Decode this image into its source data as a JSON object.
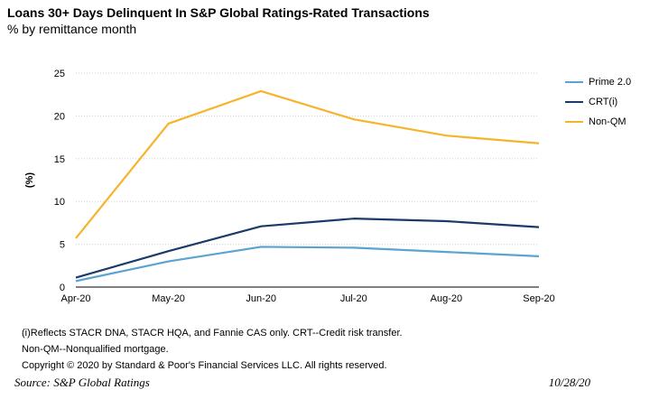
{
  "header": {
    "title": "Loans 30+ Days Delinquent In S&P Global Ratings-Rated Transactions",
    "subtitle": "% by remittance month"
  },
  "footer": {
    "note1": "(i)Reflects STACR DNA, STACR HQA, and Fannie CAS only. CRT--Credit risk transfer.",
    "note2": "Non-QM--Nonqualified mortgage.",
    "copyright": "Copyright © 2020 by Standard & Poor's Financial Services LLC. All rights reserved.",
    "source": "Source: S&P Global Ratings",
    "date": "10/28/20"
  },
  "chart_data": {
    "type": "line",
    "title": "Loans 30+ Days Delinquent In S&P Global Ratings-Rated Transactions",
    "subtitle": "% by remittance month",
    "xlabel": "",
    "ylabel": "(%)",
    "categories": [
      "Apr-20",
      "May-20",
      "Jun-20",
      "Jul-20",
      "Aug-20",
      "Sep-20"
    ],
    "ylim": [
      0,
      25
    ],
    "yticks": [
      0,
      5,
      10,
      15,
      20,
      25
    ],
    "grid": true,
    "legend_position": "right",
    "series": [
      {
        "name": "Prime 2.0",
        "color": "#5ba3d0",
        "values": [
          0.7,
          3.0,
          4.7,
          4.6,
          4.1,
          3.6
        ]
      },
      {
        "name": "CRT(i)",
        "color": "#1a3a68",
        "values": [
          1.1,
          4.2,
          7.1,
          8.0,
          7.7,
          7.0
        ]
      },
      {
        "name": "Non-QM",
        "color": "#f7b32b",
        "values": [
          5.7,
          19.1,
          22.9,
          19.6,
          17.7,
          16.8
        ]
      }
    ]
  }
}
